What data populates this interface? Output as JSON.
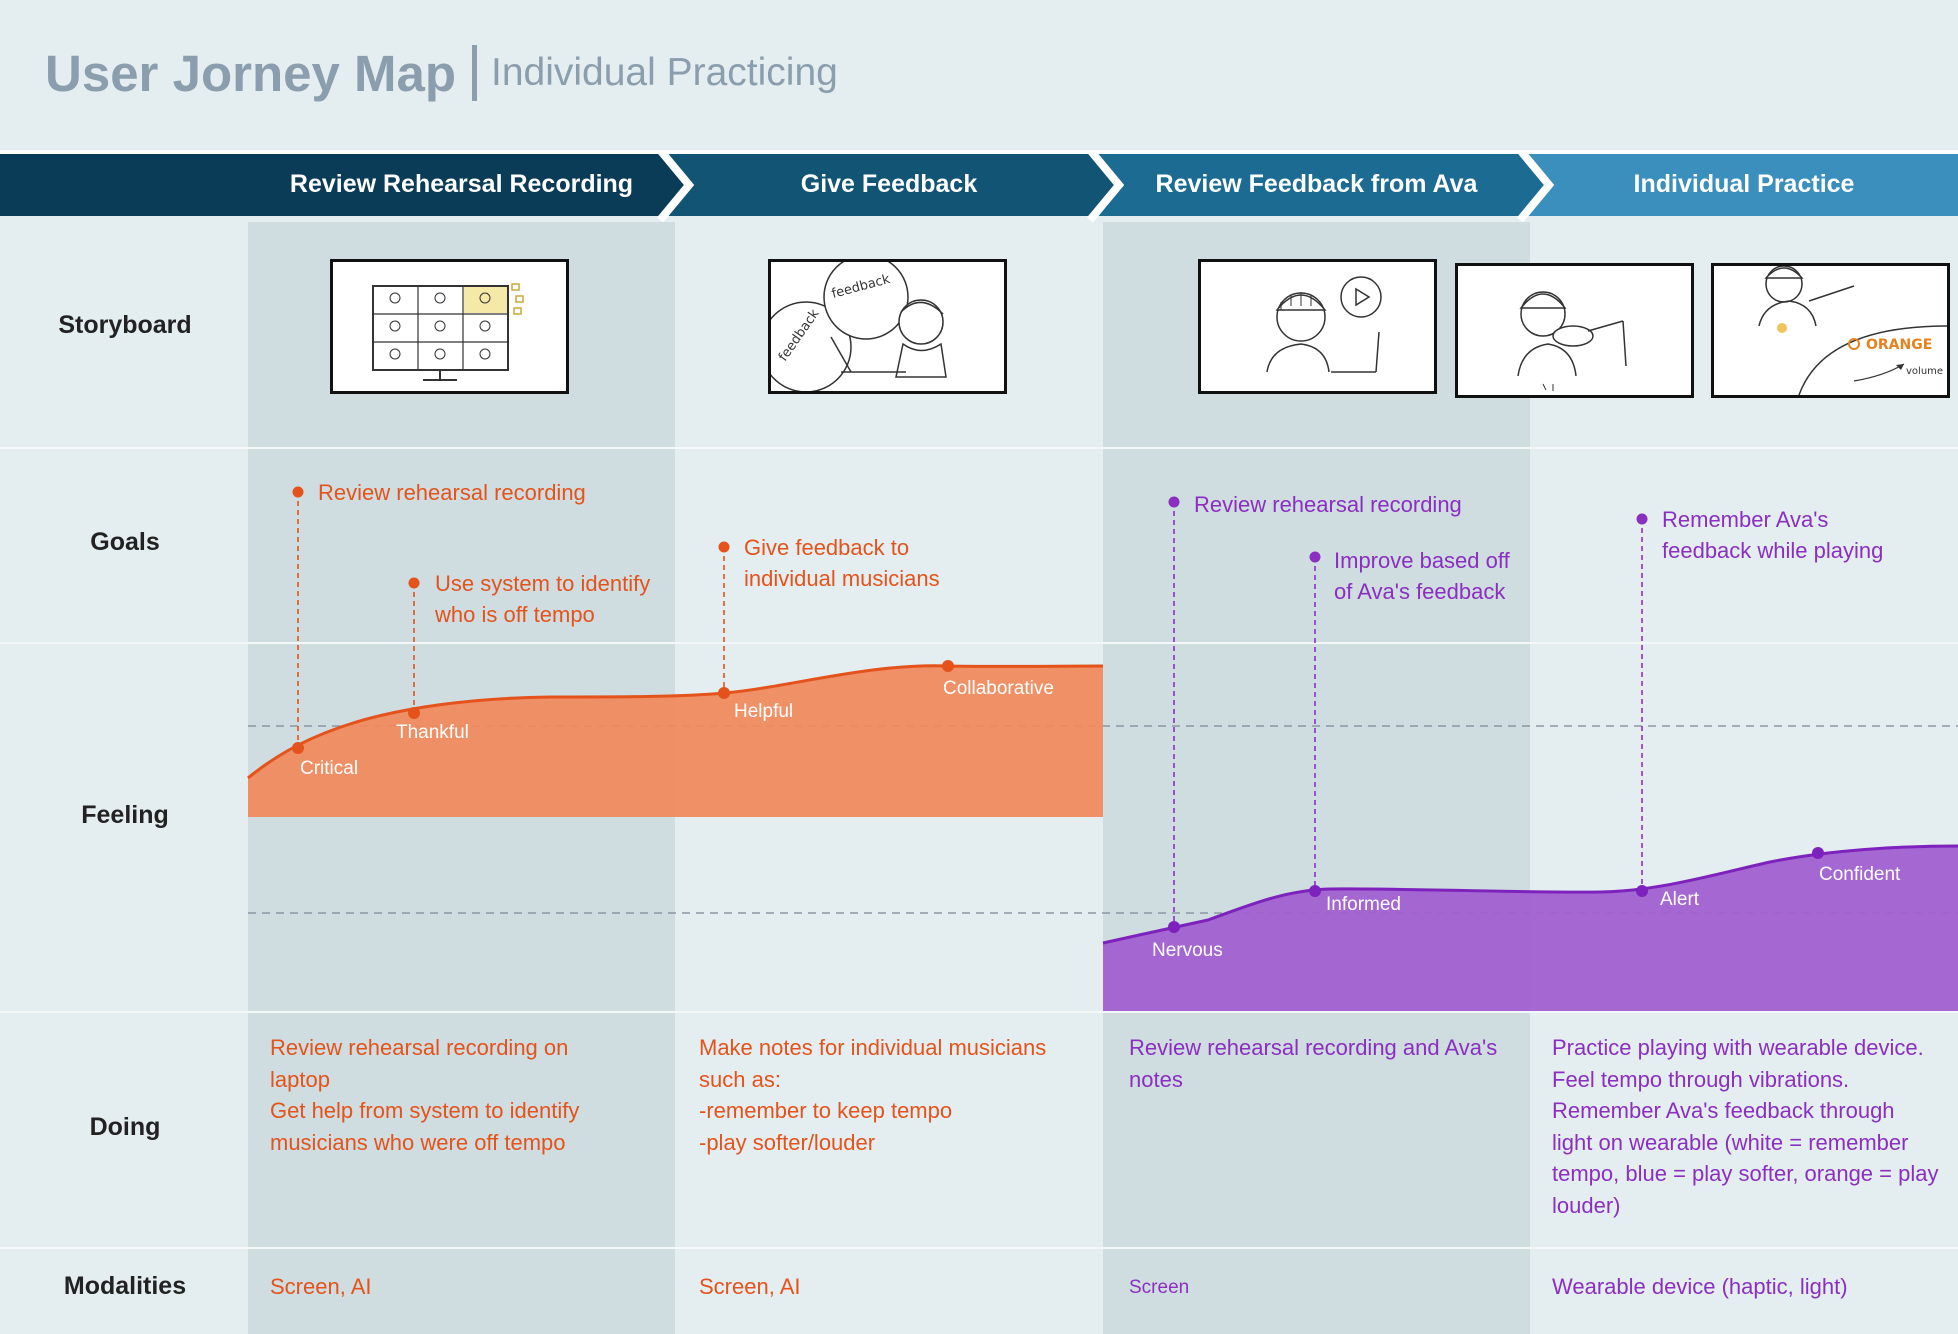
{
  "title": {
    "main": "User Jorney Map",
    "sub": "Individual Practicing"
  },
  "phases": [
    {
      "label": "Review Rehearsal Recording",
      "color": "#0a3c58"
    },
    {
      "label": "Give Feedback",
      "color": "#125474"
    },
    {
      "label": "Review Feedback from Ava",
      "color": "#1b6b92"
    },
    {
      "label": "Individual Practice",
      "color": "#3a8fbc"
    }
  ],
  "rows": {
    "storyboard": "Storyboard",
    "goals": "Goals",
    "feeling": "Feeling",
    "doing": "Doing",
    "modalities": "Modalities"
  },
  "storyboard": {
    "frame2_text_1": "feedback",
    "frame2_text_2": "feedback",
    "frame6_text_1": "ORANGE",
    "frame6_text_2": "volume"
  },
  "goals": {
    "g1": "Review rehearsal recording",
    "g2_line1": "Use system to identify",
    "g2_line2": "who is off tempo",
    "g3_line1": "Give feedback to",
    "g3_line2": "individual musicians",
    "g4": "Review rehearsal recording",
    "g5_line1": "Improve based off",
    "g5_line2": "of Ava's feedback",
    "g6_line1": "Remember Ava's",
    "g6_line2": "feedback while playing"
  },
  "feelings": {
    "orange": [
      "Critical",
      "Thankful",
      "Helpful",
      "Collaborative"
    ],
    "purple": [
      "Nervous",
      "Informed",
      "Alert",
      "Confident"
    ]
  },
  "doing": {
    "d1": [
      "Review rehearsal recording on",
      "laptop",
      "Get help from system to identify",
      "musicians who were off tempo"
    ],
    "d2": [
      "Make notes for individual musicians",
      "such as:",
      "-remember to keep tempo",
      "-play softer/louder"
    ],
    "d3": [
      "Review rehearsal recording and Ava's",
      "notes"
    ],
    "d4": [
      "Practice playing with wearable device.",
      "Feel tempo through vibrations.",
      "Remember Ava's feedback through",
      "light on wearable (white = remember",
      "tempo, blue = play softer, orange = play",
      "louder)"
    ]
  },
  "modalities": {
    "m1": "Screen, AI",
    "m2": "Screen, AI",
    "m3": "Screen",
    "m4": "Wearable device (haptic, light)"
  },
  "colors": {
    "orange_text": "#e4531b",
    "orange_fill": "#f0895b",
    "orange_line": "#e4531b",
    "purple_text": "#8a2fc0",
    "purple_fill": "#a15fd0",
    "purple_line": "#7d22bd"
  }
}
